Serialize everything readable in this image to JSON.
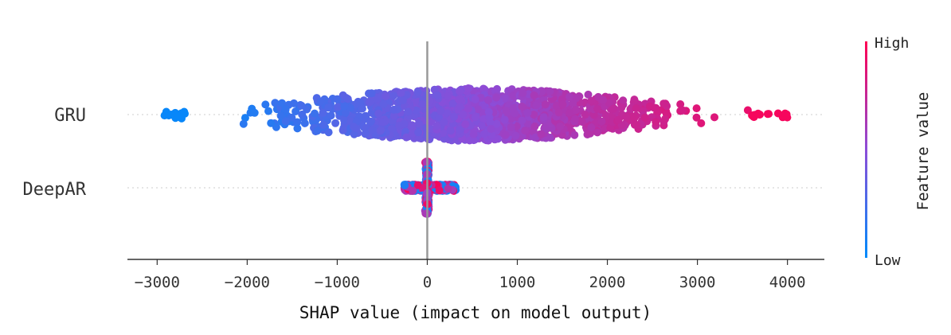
{
  "chart_data": {
    "type": "scatter",
    "subtype": "shap-beeswarm",
    "title": "",
    "xlabel": "SHAP value (impact on model output)",
    "ylabel": "",
    "xlim": [
      -3330,
      4410
    ],
    "x_ticks": [
      -3000,
      -2000,
      -1000,
      0,
      1000,
      2000,
      3000,
      4000
    ],
    "x_tick_labels": [
      "−3000",
      "−2000",
      "−1000",
      "0",
      "1000",
      "2000",
      "3000",
      "4000"
    ],
    "grid": false,
    "zero_line": true,
    "features": [
      {
        "name": "GRU",
        "shap_min": -2920,
        "shap_max": 4020,
        "peak_density_at": 550,
        "relation": "feature value increases with SHAP value (low = blue on left, high = red on right)",
        "points": 1500
      },
      {
        "name": "DeepAR",
        "shap_min": -260,
        "shap_max": 320,
        "peak_density_at": 0,
        "relation": "mixed colors concentrated near zero",
        "points": 600
      }
    ],
    "colorbar": {
      "title": "Feature value",
      "high_label": "High",
      "low_label": "Low",
      "low_color": "#008bfb",
      "mid_color": "#8c4dd8",
      "high_color": "#ff0052"
    }
  }
}
